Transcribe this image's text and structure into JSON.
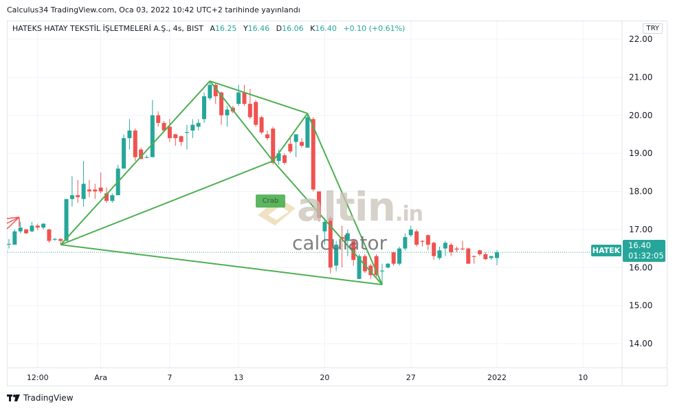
{
  "publish_line": "Calculus34 TradingView.com, Oca 03, 2022 10:42 UTC+2 tarihinde yayınlandı",
  "legend": {
    "title": "HATEKS HATAY TEKSTİL İŞLETMELERİ A.Ş., 4s, BIST",
    "open_label": "A",
    "open": "16.25",
    "high_label": "Y",
    "high": "16.46",
    "low_label": "D",
    "low": "16.06",
    "close_label": "K",
    "close": "16.40",
    "change": "+0.10 (+0.61%)"
  },
  "currency": "TRY",
  "symbol_tag": "HATEK",
  "price_tag": {
    "price": "16.40",
    "countdown": "01:32:05"
  },
  "pattern_label": "Crab",
  "watermark": {
    "brand": "altin",
    "suffix": ".in",
    "sub": "calculator"
  },
  "footer_brand": "TradingView",
  "colors": {
    "up": "#26a69a",
    "down": "#ef5350",
    "pattern": "#4caf50",
    "grid": "#f0f3fa"
  },
  "chart_data": {
    "type": "candlestick",
    "ylim": [
      13.5,
      22.4
    ],
    "yticks": [
      "14.00",
      "15.00",
      "16.00",
      "17.00",
      "18.00",
      "19.00",
      "20.00",
      "21.00",
      "22.00"
    ],
    "xticks": [
      {
        "label": "12:00",
        "index": 5
      },
      {
        "label": "Ara",
        "index": 16
      },
      {
        "label": "7",
        "index": 28
      },
      {
        "label": "13",
        "index": 40
      },
      {
        "label": "20",
        "index": 55
      },
      {
        "label": "27",
        "index": 70
      },
      {
        "label": "2022",
        "index": 85
      },
      {
        "label": "10",
        "index": 100
      }
    ],
    "last_price": 16.4,
    "grid": true,
    "ohlc": [
      [
        16.6,
        16.75,
        16.5,
        16.62
      ],
      [
        16.6,
        17.0,
        16.6,
        16.95
      ],
      [
        16.95,
        17.2,
        16.9,
        17.05
      ],
      [
        17.0,
        17.02,
        16.88,
        16.9
      ],
      [
        16.95,
        17.2,
        16.93,
        17.1
      ],
      [
        17.1,
        17.15,
        16.98,
        17.05
      ],
      [
        17.05,
        17.17,
        17.0,
        17.15
      ],
      [
        17.0,
        17.02,
        16.65,
        16.7
      ],
      [
        16.73,
        16.78,
        16.7,
        16.75
      ],
      [
        16.75,
        16.77,
        16.6,
        16.7
      ],
      [
        16.7,
        17.8,
        16.7,
        17.8
      ],
      [
        17.8,
        18.4,
        17.6,
        17.9
      ],
      [
        17.9,
        18.3,
        17.7,
        17.85
      ],
      [
        17.8,
        18.8,
        17.6,
        18.2
      ],
      [
        18.05,
        18.3,
        17.85,
        18.0
      ],
      [
        18.05,
        18.2,
        17.8,
        18.0
      ],
      [
        18.1,
        18.5,
        17.95,
        18.0
      ],
      [
        17.95,
        18.1,
        17.7,
        17.75
      ],
      [
        17.75,
        17.95,
        17.7,
        17.9
      ],
      [
        17.9,
        18.7,
        17.9,
        18.6
      ],
      [
        18.6,
        19.5,
        18.6,
        19.4
      ],
      [
        19.4,
        19.9,
        19.1,
        19.6
      ],
      [
        19.6,
        19.65,
        18.8,
        18.9
      ],
      [
        19.1,
        19.15,
        18.85,
        18.85
      ],
      [
        18.9,
        18.95,
        18.88,
        18.9
      ],
      [
        18.9,
        20.4,
        18.9,
        20.0
      ],
      [
        20.0,
        20.1,
        19.7,
        19.8
      ],
      [
        19.8,
        19.85,
        19.55,
        19.6
      ],
      [
        19.7,
        19.9,
        19.3,
        19.4
      ],
      [
        19.5,
        19.52,
        19.2,
        19.4
      ],
      [
        19.45,
        19.47,
        19.2,
        19.3
      ],
      [
        19.55,
        19.75,
        19.1,
        19.56
      ],
      [
        19.6,
        19.9,
        19.4,
        19.75
      ],
      [
        19.7,
        19.9,
        19.6,
        19.8
      ],
      [
        19.9,
        20.6,
        19.8,
        20.5
      ],
      [
        20.45,
        20.9,
        20.4,
        20.8
      ],
      [
        20.8,
        20.85,
        20.3,
        20.5
      ],
      [
        20.6,
        20.62,
        19.75,
        20.0
      ],
      [
        20.0,
        20.25,
        19.7,
        20.15
      ],
      [
        20.2,
        20.25,
        20.05,
        20.1
      ],
      [
        20.3,
        20.8,
        20.25,
        20.6
      ],
      [
        20.6,
        20.8,
        20.25,
        20.3
      ],
      [
        20.3,
        20.7,
        19.9,
        19.95
      ],
      [
        20.35,
        20.4,
        19.7,
        19.75
      ],
      [
        19.95,
        19.98,
        19.5,
        19.55
      ],
      [
        19.5,
        19.6,
        19.35,
        19.4
      ],
      [
        19.65,
        19.7,
        18.7,
        18.75
      ],
      [
        18.8,
        19.1,
        18.7,
        19.0
      ],
      [
        18.95,
        19.0,
        18.7,
        18.75
      ],
      [
        19.25,
        19.4,
        19.0,
        19.05
      ],
      [
        19.3,
        19.5,
        18.9,
        19.5
      ],
      [
        19.3,
        19.4,
        19.15,
        19.2
      ],
      [
        19.15,
        20.05,
        19.15,
        19.95
      ],
      [
        19.9,
        19.95,
        18.0,
        18.05
      ],
      [
        18.0,
        18.0,
        17.2,
        17.3
      ],
      [
        16.95,
        17.3,
        16.6,
        17.2
      ],
      [
        17.3,
        17.35,
        15.85,
        16.0
      ],
      [
        16.05,
        16.7,
        15.9,
        16.6
      ],
      [
        16.8,
        17.1,
        16.0,
        16.75
      ],
      [
        16.7,
        17.0,
        16.3,
        16.9
      ],
      [
        16.7,
        16.75,
        16.05,
        16.2
      ],
      [
        15.7,
        16.35,
        15.7,
        16.3
      ],
      [
        16.3,
        16.35,
        15.85,
        15.9
      ],
      [
        16.05,
        16.1,
        15.7,
        15.8
      ],
      [
        16.3,
        16.35,
        15.75,
        15.8
      ],
      [
        15.9,
        16.1,
        15.55,
        15.92
      ],
      [
        16.0,
        16.12,
        15.98,
        16.1
      ],
      [
        16.4,
        16.42,
        16.05,
        16.1
      ],
      [
        16.1,
        16.55,
        16.05,
        16.5
      ],
      [
        16.5,
        16.9,
        16.45,
        16.8
      ],
      [
        16.85,
        17.1,
        16.8,
        17.0
      ],
      [
        16.95,
        17.0,
        16.55,
        16.6
      ],
      [
        16.7,
        16.72,
        16.55,
        16.68
      ],
      [
        16.85,
        16.87,
        16.45,
        16.6
      ],
      [
        16.65,
        16.68,
        16.2,
        16.3
      ],
      [
        16.25,
        16.55,
        16.2,
        16.45
      ],
      [
        16.5,
        16.7,
        16.3,
        16.65
      ],
      [
        16.6,
        16.65,
        16.3,
        16.4
      ],
      [
        16.5,
        16.55,
        16.4,
        16.47
      ],
      [
        16.5,
        16.7,
        16.45,
        16.48
      ],
      [
        16.5,
        16.52,
        16.1,
        16.1
      ],
      [
        16.3,
        16.32,
        16.1,
        16.28
      ],
      [
        16.45,
        16.47,
        16.3,
        16.35
      ],
      [
        16.35,
        16.4,
        16.2,
        16.22
      ],
      [
        16.25,
        16.3,
        16.2,
        16.3
      ],
      [
        16.25,
        16.46,
        16.06,
        16.4
      ]
    ],
    "pattern": {
      "name": "Crab",
      "points": {
        "X": [
          9,
          16.6
        ],
        "A": [
          35,
          20.9
        ],
        "B": [
          46,
          18.8
        ],
        "C": [
          52,
          20.05
        ],
        "D": [
          65,
          15.55
        ]
      },
      "lines": [
        [
          "X",
          "A"
        ],
        [
          "A",
          "B"
        ],
        [
          "B",
          "C"
        ],
        [
          "C",
          "D"
        ],
        [
          "X",
          "B"
        ],
        [
          "A",
          "C"
        ],
        [
          "B",
          "D"
        ],
        [
          "X",
          "D"
        ]
      ]
    }
  }
}
